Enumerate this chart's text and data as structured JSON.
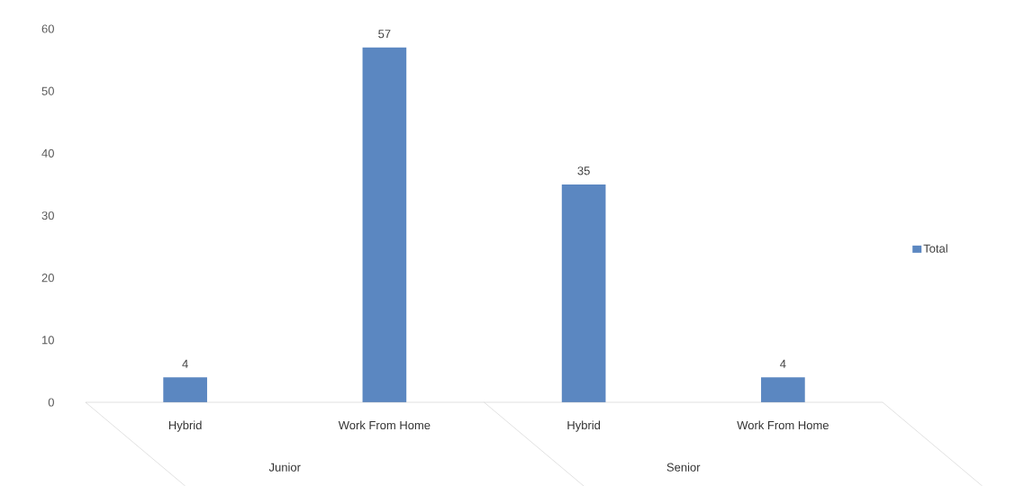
{
  "chart_data": {
    "type": "bar",
    "categories": [
      "Hybrid",
      "Work From Home",
      "Hybrid",
      "Work From Home"
    ],
    "series": [
      {
        "name": "Total",
        "color": "#5b87c1",
        "values": [
          4,
          57,
          35,
          4
        ]
      }
    ],
    "annotations": [
      "Junior",
      "Senior"
    ],
    "ylim": [
      0,
      60
    ],
    "yticks": [
      0,
      10,
      20,
      30,
      40,
      50,
      60
    ],
    "grid": false,
    "legend": "right",
    "data_labels": true
  }
}
